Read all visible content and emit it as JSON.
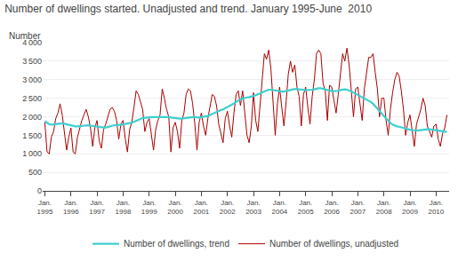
{
  "chart_data": {
    "type": "line",
    "title": "Number of dwellings started. Unadjusted and trend. January 1995-June  2010",
    "ylabel": "Number",
    "categories": [
      "Jan.\n1995",
      null,
      null,
      null,
      null,
      null,
      null,
      null,
      null,
      null,
      null,
      null,
      "Jan.\n1996",
      null,
      null,
      null,
      null,
      null,
      null,
      null,
      null,
      null,
      null,
      null,
      "Jan.\n1997",
      null,
      null,
      null,
      null,
      null,
      null,
      null,
      null,
      null,
      null,
      null,
      "Jan.\n1998",
      null,
      null,
      null,
      null,
      null,
      null,
      null,
      null,
      null,
      null,
      null,
      "Jan.\n1999",
      null,
      null,
      null,
      null,
      null,
      null,
      null,
      null,
      null,
      null,
      null,
      "Jan.\n2000",
      null,
      null,
      null,
      null,
      null,
      null,
      null,
      null,
      null,
      null,
      null,
      "Jan.\n2001",
      null,
      null,
      null,
      null,
      null,
      null,
      null,
      null,
      null,
      null,
      null,
      "Jan.\n2002",
      null,
      null,
      null,
      null,
      null,
      null,
      null,
      null,
      null,
      null,
      null,
      "Jan.\n2003",
      null,
      null,
      null,
      null,
      null,
      null,
      null,
      null,
      null,
      null,
      null,
      "Jan.\n2004",
      null,
      null,
      null,
      null,
      null,
      null,
      null,
      null,
      null,
      null,
      null,
      "Jan.\n2005",
      null,
      null,
      null,
      null,
      null,
      null,
      null,
      null,
      null,
      null,
      null,
      "Jan.\n2006",
      null,
      null,
      null,
      null,
      null,
      null,
      null,
      null,
      null,
      null,
      null,
      "Jan.\n2007",
      null,
      null,
      null,
      null,
      null,
      null,
      null,
      null,
      null,
      null,
      null,
      "Jan.\n2008",
      null,
      null,
      null,
      null,
      null,
      null,
      null,
      null,
      null,
      null,
      null,
      "Jan.\n2009",
      null,
      null,
      null,
      null,
      null,
      null,
      null,
      null,
      null,
      null,
      null,
      "Jan.\n2010",
      null,
      null,
      null,
      null,
      null
    ],
    "series": [
      {
        "name": "Number of dwellings, unadjusted",
        "color": "#AA0000",
        "values": [
          1850,
          1050,
          1000,
          1450,
          1600,
          1950,
          2100,
          2350,
          2050,
          1550,
          1100,
          1450,
          1700,
          1050,
          1000,
          1450,
          1700,
          1900,
          2050,
          2200,
          2000,
          1700,
          1200,
          1700,
          1900,
          1350,
          1150,
          1650,
          1800,
          2000,
          2200,
          2250,
          2150,
          1900,
          1400,
          1800,
          1900,
          1400,
          1050,
          1650,
          1850,
          2250,
          2700,
          2600,
          2400,
          2200,
          1600,
          1850,
          1950,
          1550,
          1100,
          1650,
          1900,
          2050,
          2750,
          2500,
          2200,
          2000,
          1050,
          1700,
          1850,
          1600,
          1150,
          1900,
          2100,
          2600,
          2750,
          2700,
          2350,
          1800,
          1100,
          1850,
          2100,
          1750,
          1500,
          1950,
          2300,
          2600,
          2550,
          2300,
          1800,
          1550,
          1300,
          1950,
          2150,
          1750,
          1450,
          2100,
          2600,
          2700,
          2300,
          2700,
          2150,
          1500,
          1300,
          1750,
          2650,
          1900,
          1600,
          2350,
          2900,
          3700,
          3550,
          3800,
          3300,
          2500,
          1500,
          2350,
          2800,
          2250,
          1750,
          2400,
          3150,
          3500,
          3200,
          3400,
          2800,
          2550,
          1750,
          2600,
          2800,
          2250,
          1800,
          2550,
          3000,
          3700,
          3800,
          3700,
          2900,
          2700,
          1900,
          2850,
          2800,
          2450,
          2100,
          2600,
          3250,
          3700,
          3500,
          3850,
          3400,
          2700,
          2000,
          2750,
          2800,
          2350,
          1900,
          2750,
          3200,
          3600,
          3600,
          3700,
          3200,
          2750,
          2000,
          2500,
          2500,
          1900,
          1500,
          2200,
          2650,
          3000,
          3200,
          3100,
          2700,
          2200,
          1500,
          1850,
          2050,
          1600,
          1200,
          1800,
          2000,
          2200,
          2500,
          2300,
          1750,
          1600,
          1450,
          1750,
          1800,
          1400,
          1200,
          1550,
          1700,
          2050
        ]
      },
      {
        "name": "Number of dwellings, trend",
        "color": "#3DCFCF",
        "values": [
          1880,
          1830,
          1800,
          1790,
          1790,
          1800,
          1810,
          1820,
          1820,
          1810,
          1790,
          1780,
          1770,
          1750,
          1740,
          1740,
          1740,
          1750,
          1760,
          1770,
          1770,
          1760,
          1750,
          1740,
          1730,
          1720,
          1710,
          1710,
          1710,
          1720,
          1740,
          1760,
          1770,
          1780,
          1780,
          1780,
          1790,
          1800,
          1810,
          1820,
          1840,
          1860,
          1890,
          1920,
          1940,
          1960,
          1970,
          1980,
          1990,
          1990,
          1990,
          1990,
          1990,
          1990,
          2000,
          2000,
          2000,
          1990,
          1980,
          1970,
          1960,
          1960,
          1950,
          1950,
          1960,
          1970,
          1980,
          1990,
          1990,
          1990,
          1980,
          1980,
          1990,
          2000,
          2010,
          2020,
          2050,
          2080,
          2110,
          2140,
          2160,
          2180,
          2200,
          2230,
          2260,
          2290,
          2320,
          2360,
          2400,
          2440,
          2470,
          2490,
          2510,
          2520,
          2530,
          2540,
          2560,
          2580,
          2600,
          2630,
          2660,
          2690,
          2720,
          2730,
          2730,
          2720,
          2700,
          2690,
          2680,
          2680,
          2680,
          2690,
          2700,
          2720,
          2740,
          2750,
          2750,
          2740,
          2730,
          2720,
          2720,
          2720,
          2720,
          2730,
          2740,
          2760,
          2770,
          2770,
          2760,
          2740,
          2720,
          2700,
          2690,
          2690,
          2690,
          2700,
          2720,
          2730,
          2740,
          2730,
          2710,
          2680,
          2650,
          2620,
          2590,
          2560,
          2530,
          2500,
          2470,
          2440,
          2400,
          2350,
          2290,
          2230,
          2160,
          2090,
          2020,
          1950,
          1890,
          1830,
          1790,
          1760,
          1740,
          1730,
          1720,
          1700,
          1680,
          1660,
          1650,
          1640,
          1630,
          1630,
          1630,
          1640,
          1650,
          1660,
          1660,
          1660,
          1650,
          1640,
          1630,
          1630,
          1620,
          1610,
          1600,
          1590
        ]
      }
    ],
    "ylim": [
      0,
      4000
    ],
    "yticks": [
      0,
      500,
      {
        "value": 1000,
        "label": "1 000"
      },
      {
        "value": 1500,
        "label": "1 500"
      },
      {
        "value": 2000,
        "label": "2 000"
      },
      {
        "value": 2500,
        "label": "2 500"
      },
      {
        "value": 3000,
        "label": "3 000"
      },
      {
        "value": 3500,
        "label": "3 500"
      },
      {
        "value": 4000,
        "label": "4 000"
      }
    ],
    "grid": true,
    "legend": "bottom"
  }
}
